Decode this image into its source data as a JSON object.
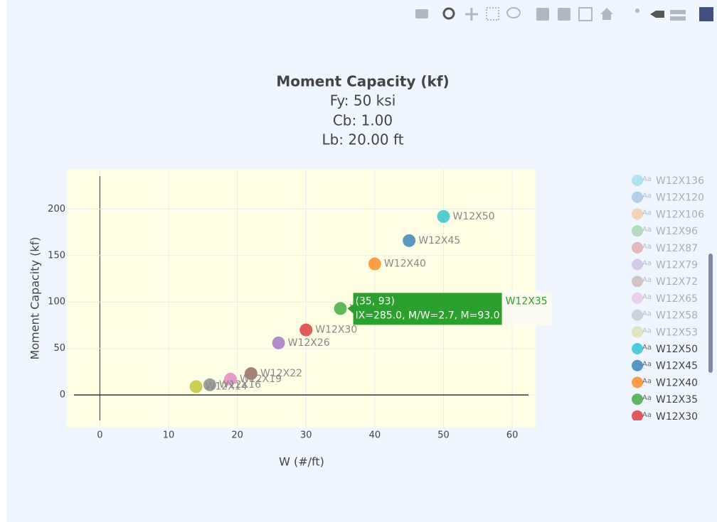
{
  "chart_data": {
    "type": "scatter",
    "title": "Moment Capacity (kf)",
    "subtitle_lines": [
      "Fy: 50 ksi",
      "Cb: 1.00",
      "Lb: 20.00 ft"
    ],
    "x_label": "W (#/ft)",
    "y_label": "Moment Capacity (kf)",
    "xlim": [
      -4.8,
      63.4
    ],
    "ylim": [
      -35,
      243
    ],
    "xticks": [
      0,
      10,
      20,
      30,
      40,
      50,
      60
    ],
    "yticks": [
      0,
      50,
      100,
      150,
      200
    ],
    "grid": true,
    "zero_lines": true,
    "legend_position": "right",
    "legend_symbol_text": "Aa",
    "series": [
      {
        "name": "W12X136",
        "color": "#17becf",
        "visible": "legendonly"
      },
      {
        "name": "W12X120",
        "color": "#1f77b4",
        "visible": "legendonly"
      },
      {
        "name": "W12X106",
        "color": "#ff7f0e",
        "visible": "legendonly"
      },
      {
        "name": "W12X96",
        "color": "#2ca02c",
        "visible": "legendonly"
      },
      {
        "name": "W12X87",
        "color": "#d62728",
        "visible": "legendonly"
      },
      {
        "name": "W12X79",
        "color": "#9467bd",
        "visible": "legendonly"
      },
      {
        "name": "W12X72",
        "color": "#8c564b",
        "visible": "legendonly"
      },
      {
        "name": "W12X65",
        "color": "#e377c2",
        "visible": "legendonly"
      },
      {
        "name": "W12X58",
        "color": "#7f7f7f",
        "visible": "legendonly"
      },
      {
        "name": "W12X53",
        "color": "#bcbd22",
        "visible": "legendonly"
      },
      {
        "name": "W12X50",
        "color": "#17becf",
        "x": [
          50
        ],
        "values": [
          192
        ]
      },
      {
        "name": "W12X45",
        "color": "#1f77b4",
        "x": [
          45
        ],
        "values": [
          166
        ]
      },
      {
        "name": "W12X40",
        "color": "#ff7f0e",
        "x": [
          40
        ],
        "values": [
          141
        ]
      },
      {
        "name": "W12X35",
        "color": "#2ca02c",
        "x": [
          35
        ],
        "values": [
          93
        ]
      },
      {
        "name": "W12X30",
        "color": "#d62728",
        "x": [
          30
        ],
        "values": [
          70
        ]
      },
      {
        "name": "W12X26",
        "color": "#9467bd",
        "x": [
          26
        ],
        "values": [
          56
        ]
      },
      {
        "name": "W12X22",
        "color": "#8c564b",
        "x": [
          22
        ],
        "values": [
          23
        ]
      },
      {
        "name": "W12X19",
        "color": "#e377c2",
        "x": [
          19
        ],
        "values": [
          17
        ]
      },
      {
        "name": "W12X16",
        "color": "#7f7f7f",
        "x": [
          16
        ],
        "values": [
          11
        ]
      },
      {
        "name": "W12X14",
        "color": "#bcbd22",
        "x": [
          14
        ],
        "values": [
          9
        ]
      }
    ],
    "tooltip": {
      "series": 13,
      "header": "(35, 93)",
      "detail": "IX=285.0, M/W=2.7, M=93.0"
    }
  }
}
